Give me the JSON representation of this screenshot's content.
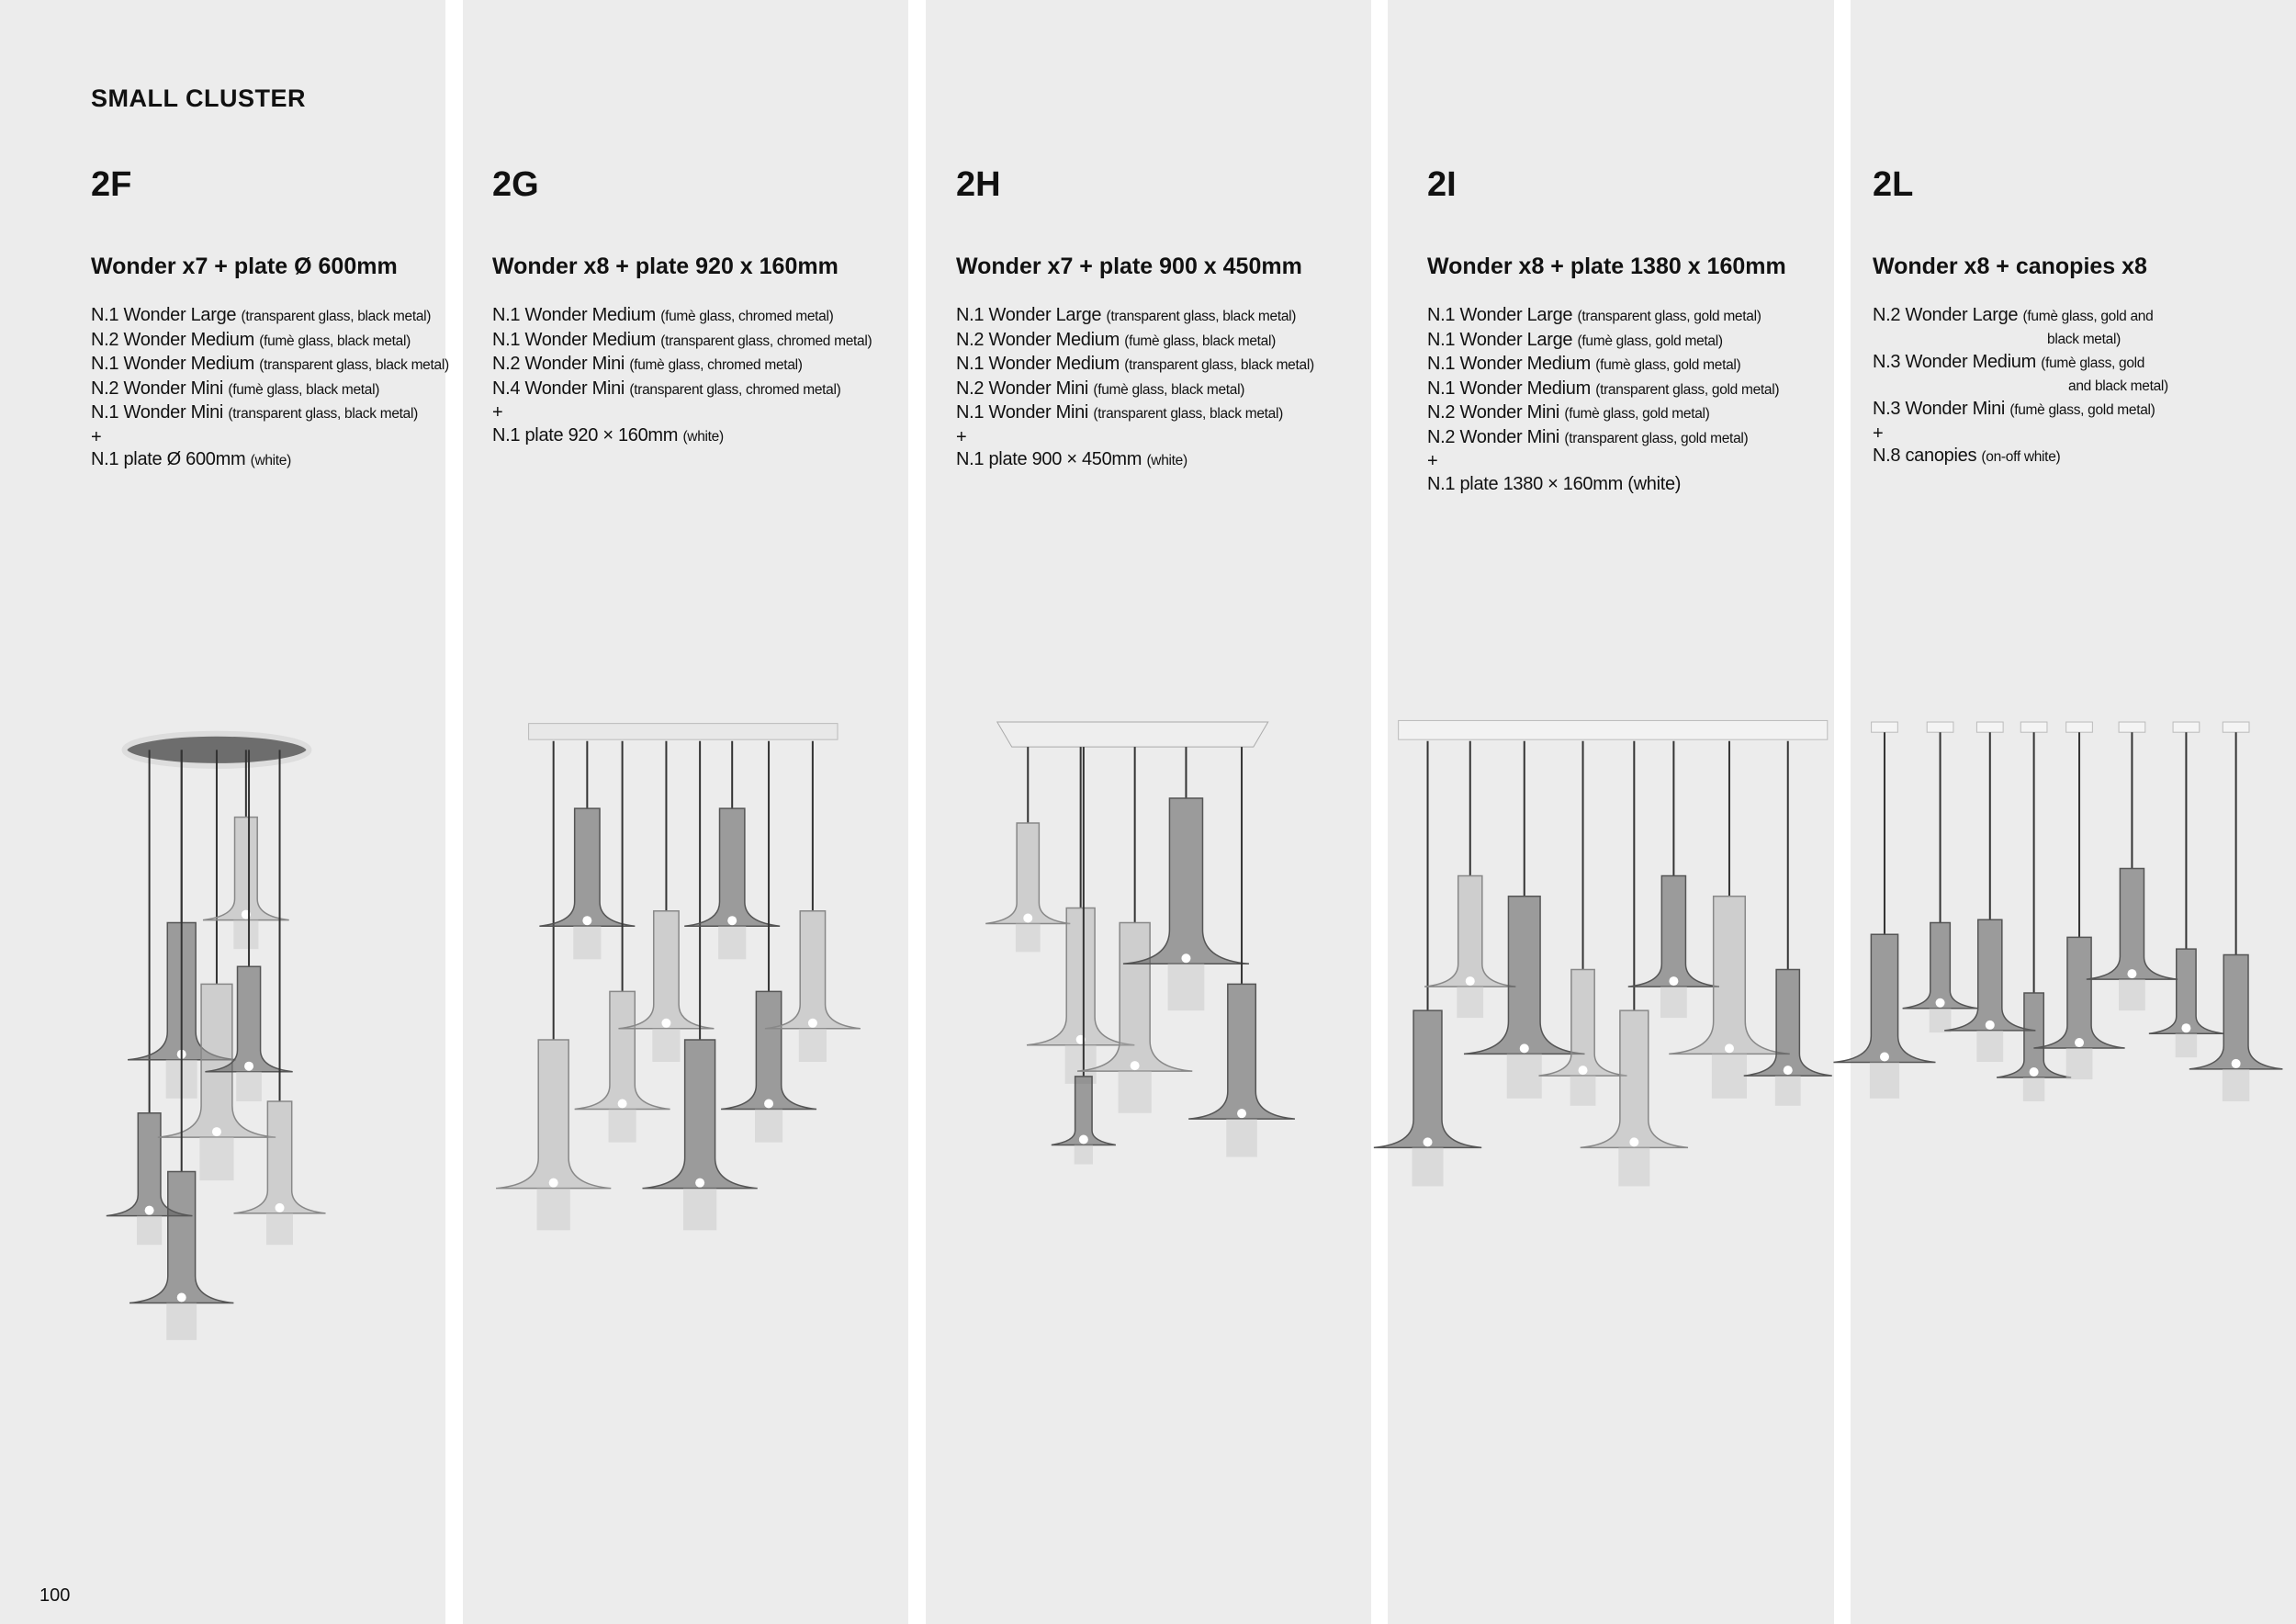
{
  "section_title": "SMALL CLUSTER",
  "page_number": "100",
  "columns": [
    {
      "code": "2F",
      "heading": "Wonder x7 + plate Ø 600mm",
      "items": [
        {
          "name": "N.1 Wonder Large",
          "detail": "(transparent glass, black metal)"
        },
        {
          "name": "N.2 Wonder Medium",
          "detail": "(fumè glass,  black metal)"
        },
        {
          "name": "N.1 Wonder Medium",
          "detail": "(transparent glass, black metal)"
        },
        {
          "name": "N.2 Wonder Mini",
          "detail": "(fumè glass, black metal)"
        },
        {
          "name": "N.1 Wonder Mini",
          "detail": "(transparent glass, black metal)"
        },
        {
          "name": "+",
          "detail": ""
        },
        {
          "name": "N.1 plate Ø 600mm",
          "detail": "(white)"
        }
      ]
    },
    {
      "code": "2G",
      "heading": "Wonder x8 + plate 920 x 160mm",
      "items": [
        {
          "name": "N.1 Wonder Medium",
          "detail": "(fumè glass, chromed metal)"
        },
        {
          "name": "N.1 Wonder Medium",
          "detail": "(transparent glass, chromed  metal)"
        },
        {
          "name": "N.2 Wonder Mini",
          "detail": "(fumè glass, chromed metal)"
        },
        {
          "name": "N.4 Wonder Mini",
          "detail": "(transparent glass, chromed metal)"
        },
        {
          "name": "+",
          "detail": ""
        },
        {
          "name": "N.1 plate 920 × 160mm",
          "detail": "(white)"
        }
      ]
    },
    {
      "code": "2H",
      "heading": "Wonder x7 + plate 900 x 450mm",
      "items": [
        {
          "name": "N.1 Wonder Large",
          "detail": "(transparent glass, black metal)"
        },
        {
          "name": "N.2 Wonder Medium",
          "detail": "(fumè glass, black  metal)"
        },
        {
          "name": "N.1 Wonder Medium",
          "detail": "(transparent glass, black metal)"
        },
        {
          "name": "N.2 Wonder Mini",
          "detail": "(fumè glass, black metal)"
        },
        {
          "name": "N.1 Wonder Mini",
          "detail": "(transparent glass, black  metal)"
        },
        {
          "name": "+",
          "detail": ""
        },
        {
          "name": "N.1 plate 900 × 450mm",
          "detail": "(white)"
        }
      ]
    },
    {
      "code": "2I",
      "heading": "Wonder x8 + plate 1380 x 160mm",
      "items": [
        {
          "name": "N.1 Wonder Large",
          "detail": "(transparent glass, gold metal)"
        },
        {
          "name": "N.1 Wonder Large",
          "detail": "(fumè glass, gold metal)"
        },
        {
          "name": "N.1 Wonder Medium",
          "detail": "(fumè glass, gold metal)"
        },
        {
          "name": "N.1 Wonder Medium",
          "detail": "(transparent glass, gold metal)"
        },
        {
          "name": "N.2 Wonder Mini",
          "detail": "(fumè glass, gold metal)"
        },
        {
          "name": "N.2 Wonder Mini",
          "detail": "(transparent glass, gold metal)"
        },
        {
          "name": "+",
          "detail": ""
        },
        {
          "name": "N.1 plate 1380 × 160mm (white)",
          "detail": ""
        }
      ]
    },
    {
      "code": "2L",
      "heading": "Wonder x8 + canopies x8",
      "items": [
        {
          "name": "N.2 Wonder Large",
          "detail": "(fumè glass, gold and",
          "detail2": "black metal)"
        },
        {
          "name": "N.3 Wonder Medium",
          "detail": "(fumè glass, gold",
          "detail2": "and black metal)"
        },
        {
          "name": "N.3 Wonder Mini",
          "detail": "(fumè glass, gold metal)"
        },
        {
          "name": "+",
          "detail": ""
        },
        {
          "name": "N.8 canopies",
          "detail": "(on-off white)"
        }
      ]
    }
  ]
}
